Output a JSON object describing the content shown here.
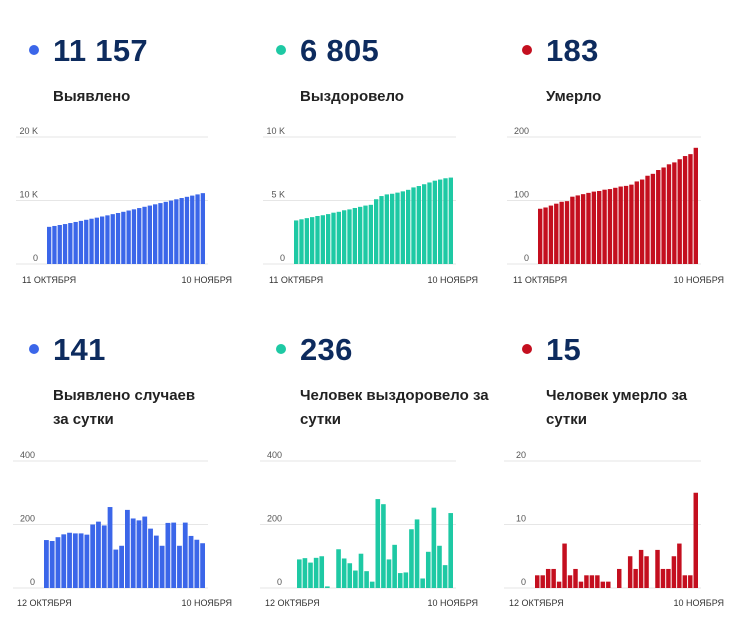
{
  "colors": {
    "blue": "#3b66e9",
    "teal": "#1ec9a4",
    "red": "#c40f1f",
    "grid": "#e6e6e6"
  },
  "stats": [
    {
      "value": "11 157",
      "label": "Выявлено",
      "color": "#3b66e9"
    },
    {
      "value": "6 805",
      "label": "Выздоровело",
      "color": "#1ec9a4"
    },
    {
      "value": "183",
      "label": "Умерло",
      "color": "#c40f1f"
    },
    {
      "value": "141",
      "label": "Выявлено случаев за сутки",
      "color": "#3b66e9"
    },
    {
      "value": "236",
      "label": "Человек выздоровело за сутки",
      "color": "#1ec9a4"
    },
    {
      "value": "15",
      "label": "Человек умерло за сутки",
      "color": "#c40f1f"
    }
  ],
  "chart_data": [
    {
      "type": "bar",
      "color": "#3b66e9",
      "ylim": [
        0,
        20000
      ],
      "yticks": [
        {
          "value": 0,
          "label": "0"
        },
        {
          "value": 10000,
          "label": "10 K"
        },
        {
          "value": 20000,
          "label": "20 K"
        }
      ],
      "xlabels": [
        "11 ОКТЯБРЯ",
        "10 НОЯБРЯ"
      ],
      "values": [
        5850,
        5990,
        6140,
        6290,
        6450,
        6620,
        6790,
        6960,
        7130,
        7300,
        7480,
        7660,
        7850,
        8030,
        8220,
        8420,
        8610,
        8810,
        9010,
        9200,
        9400,
        9590,
        9790,
        9990,
        10190,
        10390,
        10580,
        10770,
        10960,
        11157
      ]
    },
    {
      "type": "bar",
      "color": "#1ec9a4",
      "ylim": [
        0,
        10000
      ],
      "yticks": [
        {
          "value": 0,
          "label": "0"
        },
        {
          "value": 5000,
          "label": "5 K"
        },
        {
          "value": 10000,
          "label": "10 K"
        }
      ],
      "xlabels": [
        "11 ОКТЯБРЯ",
        "10 НОЯБРЯ"
      ],
      "values": [
        3430,
        3520,
        3610,
        3690,
        3780,
        3840,
        3930,
        4040,
        4110,
        4230,
        4300,
        4410,
        4500,
        4600,
        4660,
        5100,
        5350,
        5480,
        5530,
        5620,
        5720,
        5840,
        6030,
        6140,
        6280,
        6420,
        6560,
        6650,
        6750,
        6805
      ]
    },
    {
      "type": "bar",
      "color": "#c40f1f",
      "ylim": [
        0,
        200
      ],
      "yticks": [
        {
          "value": 0,
          "label": "0"
        },
        {
          "value": 100,
          "label": "100"
        },
        {
          "value": 200,
          "label": "200"
        }
      ],
      "xlabels": [
        "11 ОКТЯБРЯ",
        "10 НОЯБРЯ"
      ],
      "values": [
        87,
        89,
        92,
        95,
        98,
        99,
        106,
        108,
        110,
        112,
        114,
        115,
        117,
        118,
        120,
        122,
        123,
        125,
        130,
        133,
        139,
        142,
        148,
        152,
        157,
        160,
        165,
        170,
        173,
        183
      ]
    },
    {
      "type": "bar",
      "color": "#3b66e9",
      "ylim": [
        0,
        400
      ],
      "yticks": [
        {
          "value": 0,
          "label": "0"
        },
        {
          "value": 200,
          "label": "200"
        },
        {
          "value": 400,
          "label": "400"
        }
      ],
      "xlabels": [
        "12 ОКТЯБРЯ",
        "10 НОЯБРЯ"
      ],
      "values": [
        151,
        148,
        160,
        169,
        174,
        172,
        172,
        168,
        200,
        209,
        197,
        255,
        121,
        133,
        246,
        219,
        213,
        225,
        187,
        165,
        133,
        205,
        206,
        133,
        206,
        164,
        152,
        141
      ]
    },
    {
      "type": "bar",
      "color": "#1ec9a4",
      "ylim": [
        0,
        400
      ],
      "yticks": [
        {
          "value": 0,
          "label": "0"
        },
        {
          "value": 200,
          "label": "200"
        },
        {
          "value": 400,
          "label": "400"
        }
      ],
      "xlabels": [
        "12 ОКТЯБРЯ",
        "10 НОЯБРЯ"
      ],
      "values": [
        90,
        94,
        80,
        95,
        100,
        5,
        0,
        122,
        93,
        78,
        55,
        108,
        53,
        20,
        280,
        264,
        90,
        136,
        47,
        49,
        185,
        216,
        30,
        114,
        253,
        133,
        72,
        236
      ]
    },
    {
      "type": "bar",
      "color": "#c40f1f",
      "ylim": [
        0,
        20
      ],
      "yticks": [
        {
          "value": 0,
          "label": "0"
        },
        {
          "value": 10,
          "label": "10"
        },
        {
          "value": 20,
          "label": "20"
        }
      ],
      "xlabels": [
        "12 ОКТЯБРЯ",
        "10 НОЯБРЯ"
      ],
      "values": [
        2,
        2,
        3,
        3,
        1,
        7,
        2,
        3,
        1,
        2,
        2,
        2,
        1,
        1,
        0,
        3,
        0,
        5,
        3,
        6,
        5,
        0,
        6,
        3,
        3,
        5,
        7,
        2,
        2,
        15
      ]
    }
  ]
}
